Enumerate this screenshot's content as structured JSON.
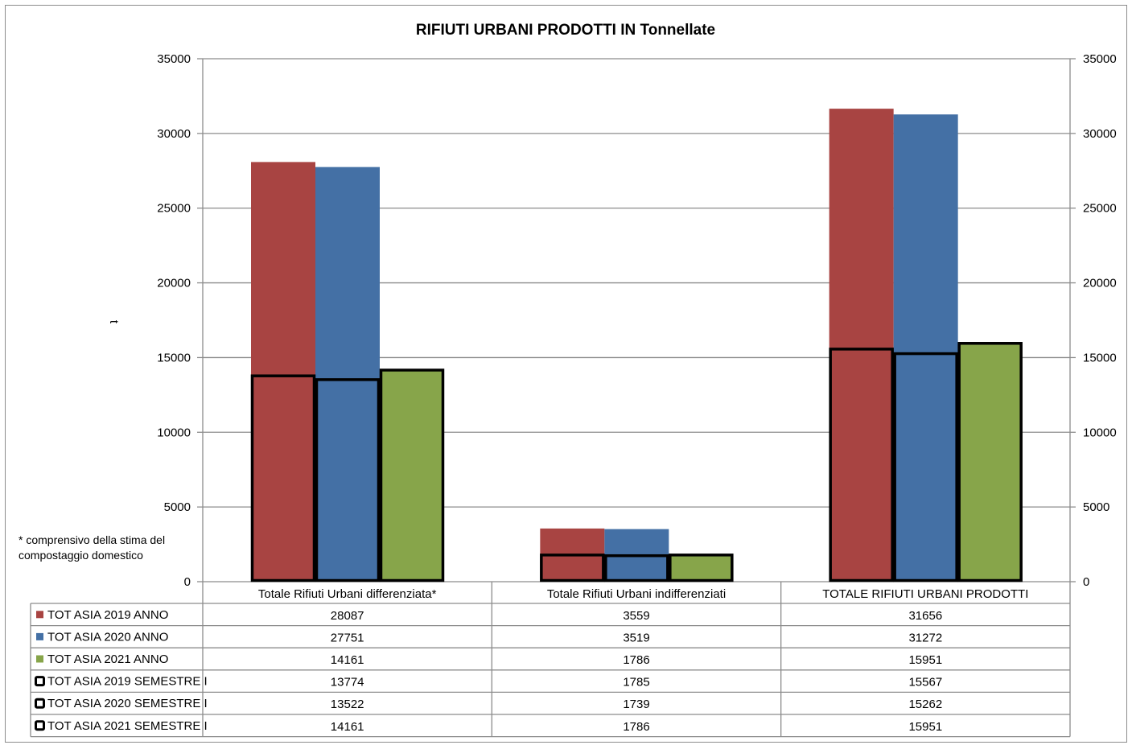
{
  "chart_data": {
    "type": "bar",
    "title": "RIFIUTI  URBANI PRODOTTI IN Tonnellate",
    "ylabel": "t",
    "ylim": [
      0,
      35000
    ],
    "yticks": [
      "35000",
      "30000",
      "25000",
      "20000",
      "15000",
      "10000",
      "5000",
      "0"
    ],
    "grid": true,
    "categories": [
      "Totale Rifiuti Urbani differenziata*",
      "Totale Rifiuti Urbani indifferenziati",
      "TOTALE  RIFIUTI URBANI PRODOTTI"
    ],
    "series": [
      {
        "name": "TOT ASIA 2019 ANNO",
        "style": "fill",
        "color": "#A84442",
        "values": [
          28087,
          3559,
          31656
        ]
      },
      {
        "name": "TOT ASIA 2020 ANNO",
        "style": "fill",
        "color": "#4470A5",
        "values": [
          27751,
          3519,
          31272
        ]
      },
      {
        "name": "TOT ASIA 2021 ANNO",
        "style": "fill",
        "color": "#87A54A",
        "values": [
          14161,
          1786,
          15951
        ]
      },
      {
        "name": "TOT ASIA 2019 SEMESTRE I",
        "style": "outline",
        "color": "#000000",
        "values": [
          13774,
          1785,
          15567
        ]
      },
      {
        "name": "TOT ASIA 2020 SEMESTRE I",
        "style": "outline",
        "color": "#000000",
        "values": [
          13522,
          1739,
          15262
        ]
      },
      {
        "name": "TOT ASIA 2021 SEMESTRE I",
        "style": "outline",
        "color": "#000000",
        "values": [
          14161,
          1786,
          15951
        ]
      }
    ],
    "table": [
      [
        "28087",
        "3559",
        "31656"
      ],
      [
        "27751",
        "3519",
        "31272"
      ],
      [
        "14161",
        "1786",
        "15951"
      ],
      [
        "13774",
        "1785",
        "15567"
      ],
      [
        "13522",
        "1739",
        "15262"
      ],
      [
        "14161",
        "1786",
        "15951"
      ]
    ],
    "annotation": [
      "* comprensivo della stima del",
      "compostaggio domestico"
    ]
  }
}
